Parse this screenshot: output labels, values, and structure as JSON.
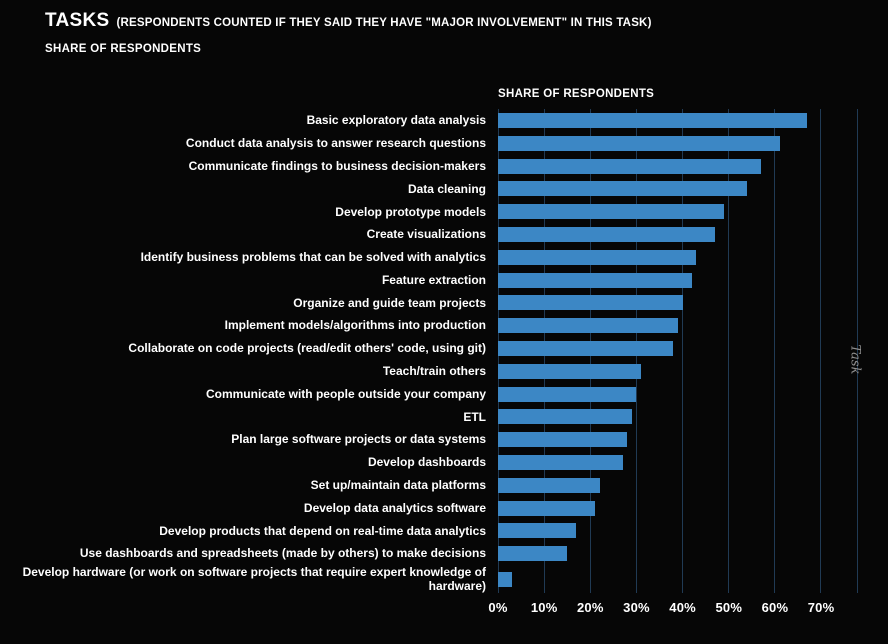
{
  "page": {
    "title": "TASKS",
    "title_suffix": "(RESPONDENTS COUNTED IF THEY SAID THEY HAVE \"MAJOR INVOLVEMENT\" IN THIS TASK)",
    "subtitle": "SHARE OF RESPONDENTS"
  },
  "chart_data": {
    "type": "bar",
    "orientation": "horizontal",
    "title": "SHARE OF RESPONDENTS",
    "xlabel": "",
    "ylabel": "Task",
    "categories": [
      "Basic exploratory data analysis",
      "Conduct data analysis to answer research questions",
      "Communicate findings to business decision-makers",
      "Data cleaning",
      "Develop prototype models",
      "Create visualizations",
      "Identify business problems that can be solved with analytics",
      "Feature extraction",
      "Organize and guide team projects",
      "Implement models/algorithms into production",
      "Collaborate on code projects (read/edit others' code, using git)",
      "Teach/train others",
      "Communicate with people outside your company",
      "ETL",
      "Plan large software projects or data systems",
      "Develop dashboards",
      "Set up/maintain data platforms",
      "Develop data analytics software",
      "Develop products that depend on real-time data analytics",
      "Use dashboards and spreadsheets (made by others) to make decisions",
      "Develop hardware (or work on software projects that require expert knowledge of hardware)"
    ],
    "values": [
      67,
      61,
      57,
      54,
      49,
      47,
      43,
      42,
      40,
      39,
      38,
      31,
      30,
      29,
      28,
      27,
      22,
      21,
      17,
      15,
      3
    ],
    "value_unit": "%",
    "xlim": [
      0,
      78
    ],
    "x_ticks": [
      "0%",
      "10%",
      "20%",
      "30%",
      "40%",
      "50%",
      "60%",
      "70%"
    ],
    "x_tick_values": [
      0,
      10,
      20,
      30,
      40,
      50,
      60,
      70
    ],
    "grid": true,
    "bar_color": "#3c87c5",
    "grid_color": "#203a54",
    "background_color": "#060606",
    "text_color": "#ffffff"
  }
}
